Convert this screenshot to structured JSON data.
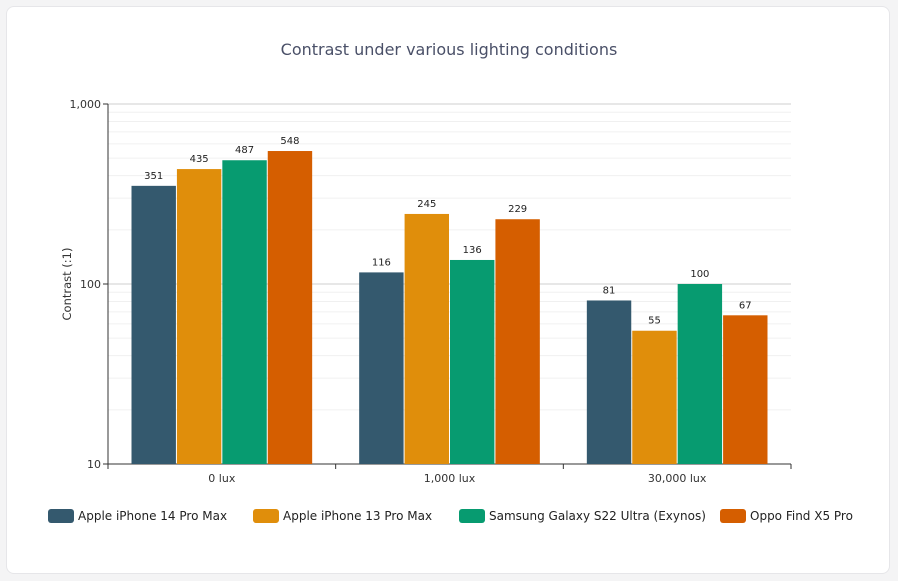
{
  "chart_data": {
    "type": "bar",
    "title": "Contrast under various lighting conditions",
    "xlabel": "",
    "ylabel": "Contrast (:1)",
    "yscale": "log",
    "ylim": [
      10,
      1000
    ],
    "yticks": [
      10,
      100,
      1000
    ],
    "ytick_labels": [
      "10",
      "100",
      "1,000"
    ],
    "categories": [
      "0 lux",
      "1,000 lux",
      "30,000 lux"
    ],
    "series": [
      {
        "name": "Apple iPhone 14 Pro Max",
        "color": "#34596e",
        "values": [
          351,
          116,
          81
        ]
      },
      {
        "name": "Apple iPhone 13 Pro Max",
        "color": "#e08e0b",
        "values": [
          435,
          245,
          55
        ]
      },
      {
        "name": "Samsung Galaxy S22 Ultra (Exynos)",
        "color": "#079b70",
        "values": [
          487,
          136,
          100
        ]
      },
      {
        "name": "Oppo Find X5 Pro",
        "color": "#d55e00",
        "values": [
          548,
          229,
          67
        ]
      }
    ],
    "legend_position": "bottom",
    "grid": true
  }
}
